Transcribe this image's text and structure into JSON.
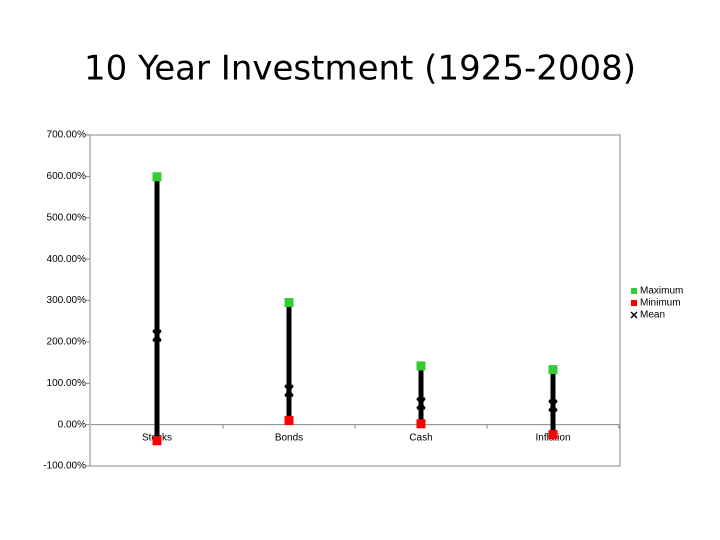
{
  "chart_data": {
    "type": "high-low",
    "title": "10 Year Investment (1925-2008)",
    "categories": [
      "Stocks",
      "Bonds",
      "Cash",
      "Inflation"
    ],
    "series": [
      {
        "name": "Maximum",
        "color": "#33cc33",
        "values": [
          599,
          295,
          142,
          133
        ]
      },
      {
        "name": "Minimum",
        "color": "#ff0000",
        "values": [
          -39,
          10,
          2,
          -24
        ]
      },
      {
        "name": "Mean",
        "color": "#000000",
        "values": [
          215,
          82,
          51,
          46
        ]
      }
    ],
    "ylim": [
      -100,
      700
    ],
    "yticks": [
      {
        "value": -100,
        "label": "-100.00%"
      },
      {
        "value": 0,
        "label": "0.00%"
      },
      {
        "value": 100,
        "label": "100.00%"
      },
      {
        "value": 200,
        "label": "200.00%"
      },
      {
        "value": 300,
        "label": "300.00%"
      },
      {
        "value": 400,
        "label": "400.00%"
      },
      {
        "value": 500,
        "label": "500.00%"
      },
      {
        "value": 600,
        "label": "600.00%"
      },
      {
        "value": 700,
        "label": "700.00%"
      }
    ],
    "grid": false,
    "legend": "right"
  }
}
